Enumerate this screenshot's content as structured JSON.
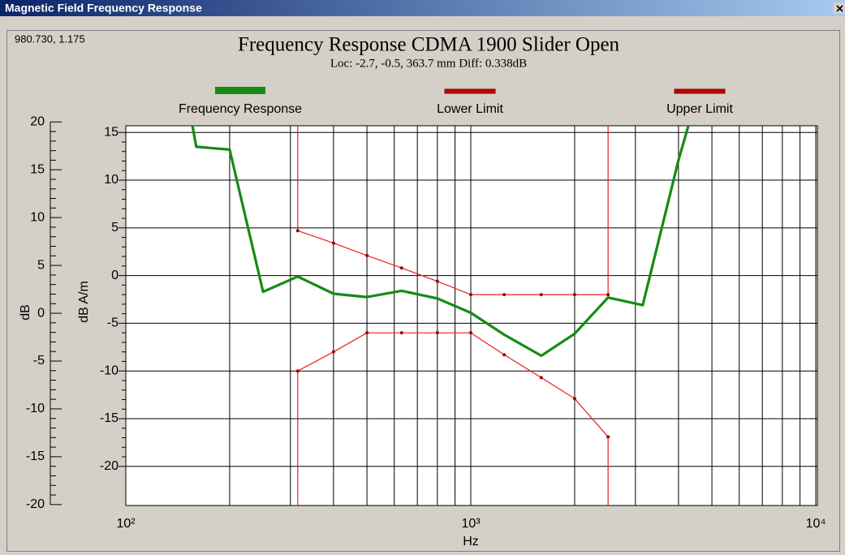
{
  "window_title": "Magnetic Field Frequency Response",
  "chart_data": {
    "type": "line",
    "cursor_readout": "980.730, 1.175",
    "title": "Frequency Response CDMA 1900 Slider Open",
    "subtitle": "Loc: -2.7, -0.5, 363.7 mm Diff: 0.338dB",
    "x_label": "Hz",
    "y_label": "dB A/m",
    "y2_label": "dB",
    "log_x": true,
    "grid": true,
    "xlim": [
      100,
      10000
    ],
    "xticks": [
      {
        "value": 100,
        "label": "10²"
      },
      {
        "value": 1000,
        "label": "10³"
      },
      {
        "value": 10000,
        "label": "10⁴"
      }
    ],
    "ylim": [
      -24.1,
      15.7
    ],
    "yticks": [
      -20,
      -15,
      -10,
      -5,
      0,
      5,
      10,
      15
    ],
    "y2lim": [
      -20.1,
      19.6
    ],
    "y2ticks": [
      -20,
      -15,
      -10,
      -5,
      0,
      5,
      10,
      15,
      20
    ],
    "series": [
      {
        "name": "Frequency Response",
        "color": "#148c14",
        "x": [
          125,
          160,
          200,
          250,
          315,
          400,
          500,
          630,
          800,
          1000,
          1250,
          1600,
          2000,
          2500,
          3150,
          4000,
          5000
        ],
        "values": [
          35,
          13.5,
          13.2,
          -1.7,
          -0.1,
          -1.9,
          -2.25,
          -1.6,
          -2.4,
          -3.9,
          -6.2,
          -8.4,
          -6.1,
          -2.3,
          -3.1,
          12.1,
          24.3
        ]
      },
      {
        "name": "Lower Limit",
        "color": "#e8201c",
        "x": [
          315,
          400,
          500,
          630,
          800,
          1000,
          1250,
          1600,
          2000,
          2500
        ],
        "values": [
          -10,
          -8,
          -6,
          -6,
          -6,
          -6,
          -8.3,
          -10.7,
          -12.9,
          -16.9
        ]
      },
      {
        "name": "Upper Limit",
        "color": "#e8201c",
        "x": [
          315,
          400,
          500,
          630,
          800,
          1000,
          1250,
          1600,
          2000,
          2500
        ],
        "values": [
          4.7,
          3.4,
          2.1,
          0.8,
          -0.6,
          -2,
          -2,
          -2,
          -2,
          -2
        ]
      }
    ]
  }
}
